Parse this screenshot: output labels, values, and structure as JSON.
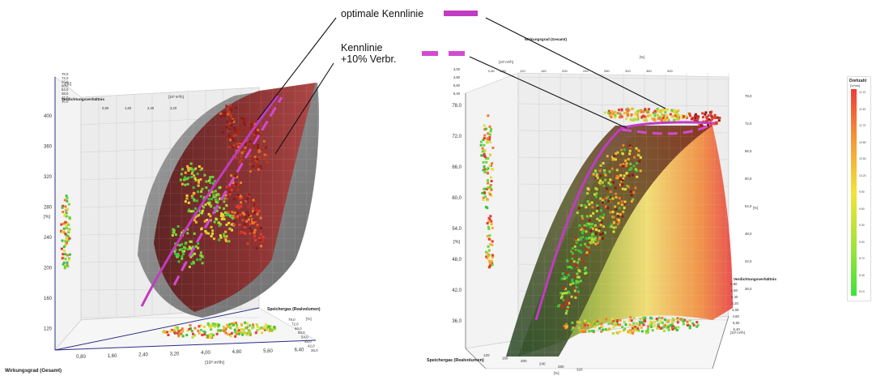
{
  "annotations": {
    "optimal": "optimale Kennlinie",
    "plus10_line1": "Kennlinie",
    "plus10_line2": "+10% Verbr."
  },
  "colors": {
    "optimal_line": "#c03cc0",
    "plus10_line": "#d24ad2",
    "surface_red": "#8b1e1e",
    "surface_grey": "#7a7a7a",
    "axis": "#2b2f8a"
  },
  "legend": {
    "title": "Drehzahl",
    "unit": "[1/min]",
    "ticks": [
      "11.10",
      "11.40",
      "11.70",
      "10.80",
      "10.50",
      "10.20",
      "9.90",
      "9.60",
      "9.30",
      "9.00",
      "8.70",
      "8.40",
      "8.10"
    ]
  },
  "chart_data": [
    {
      "type": "scatter",
      "title": "",
      "xlabel": "Speichergas (Realvolumen)",
      "ylabel": "Wirkungsgrad (Gesamt)",
      "zlabel": "Verdichtungsverhältnis",
      "x_unit": "[10³ m³/h]",
      "y_unit": "[%]",
      "x_ticks": [
        "0,80",
        "1,60",
        "2,40",
        "3,20",
        "4,00",
        "4,80",
        "5,60",
        "6,40"
      ],
      "y_ticks": [
        "120",
        "160",
        "200",
        "240",
        "280",
        "320",
        "360",
        "400"
      ],
      "z_ticks": [
        "78,0",
        "72,0",
        "66,0",
        "60,0",
        "54,0",
        "48,0",
        "42,0",
        "36,0"
      ],
      "top_ticks": [
        "0,80",
        "1,60",
        "2,40",
        "3,20"
      ],
      "series": [
        {
          "name": "optimale Kennlinie",
          "style": "solid"
        },
        {
          "name": "Kennlinie +10% Verbr.",
          "style": "dashed"
        }
      ]
    },
    {
      "type": "scatter",
      "title": "",
      "xlabel": "Speichergas (Realvolumen)",
      "ylabel": "Wirkungsgrad (Gesamt)",
      "zlabel": "Verdichtungsverhältnis",
      "x_unit": "[%]",
      "y_unit": "[%]",
      "y_ticks": [
        "78,0",
        "72,0",
        "66,0",
        "60,0",
        "54,0",
        "48,0",
        "42,0",
        "36,0"
      ],
      "x_ticks": [
        "120",
        "160",
        "200",
        "240",
        "280",
        "320"
      ],
      "top_ticks": [
        "0,80",
        "1,60",
        "120",
        "160",
        "200",
        "240",
        "280",
        "320",
        "360",
        "400"
      ],
      "right_ticks": [
        "78,0",
        "72,0",
        "66,0",
        "60,0",
        "54,0",
        "48,0",
        "42,0",
        "36,0"
      ],
      "depth_ticks": [
        "0,80",
        "1,60",
        "2,40",
        "3,20",
        "4,00",
        "4,80",
        "5,60",
        "6,40"
      ],
      "left_ticks": [
        "6,40",
        "5,60",
        "4,80",
        "4,00"
      ],
      "series": [
        {
          "name": "optimale Kennlinie",
          "style": "solid"
        },
        {
          "name": "Kennlinie +10% Verbr.",
          "style": "dashed"
        }
      ]
    }
  ]
}
